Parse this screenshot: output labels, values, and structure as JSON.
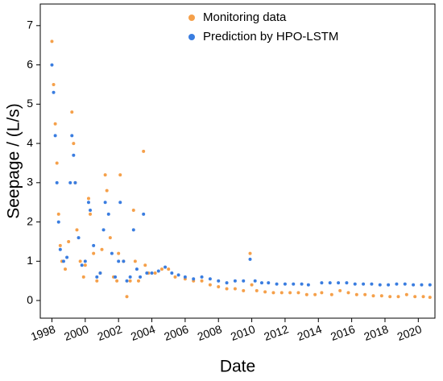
{
  "chart_data": {
    "type": "scatter",
    "xlabel": "Date",
    "ylabel": "Seepage / (L/s)",
    "xlim": [
      1997.3,
      2021.0
    ],
    "xticks": [
      1998,
      2000,
      2002,
      2004,
      2006,
      2008,
      2010,
      2012,
      2014,
      2016,
      2018,
      2020
    ],
    "ylim": [
      -0.45,
      7.55
    ],
    "yticks": [
      0,
      1,
      2,
      3,
      4,
      5,
      6,
      7
    ],
    "legend": "upper center",
    "series": [
      {
        "name": "Monitoring data",
        "color": "#f5a04a",
        "x": [
          1998.0,
          1998.1,
          1998.2,
          1998.3,
          1998.4,
          1998.5,
          1998.6,
          1998.8,
          1999.0,
          1999.2,
          1999.3,
          1999.4,
          1999.5,
          1999.7,
          1999.9,
          2000.0,
          2000.2,
          2000.3,
          2000.5,
          2000.7,
          2000.9,
          2001.0,
          2001.2,
          2001.3,
          2001.5,
          2001.7,
          2001.9,
          2002.0,
          2002.1,
          2002.3,
          2002.5,
          2002.7,
          2002.9,
          2003.0,
          2003.2,
          2003.5,
          2003.6,
          2003.8,
          2004.2,
          2004.6,
          2005.0,
          2005.4,
          2006.0,
          2006.5,
          2007.0,
          2007.5,
          2008.0,
          2008.5,
          2009.0,
          2009.5,
          2009.9,
          2010.0,
          2010.3,
          2010.8,
          2011.3,
          2011.8,
          2012.3,
          2012.8,
          2013.3,
          2013.8,
          2014.2,
          2014.8,
          2015.3,
          2015.8,
          2016.3,
          2016.8,
          2017.3,
          2017.8,
          2018.3,
          2018.8,
          2019.3,
          2019.8,
          2020.3,
          2020.7
        ],
        "values": [
          6.6,
          5.5,
          4.5,
          3.5,
          2.2,
          1.4,
          1.0,
          0.8,
          1.5,
          4.8,
          4.0,
          3.0,
          1.8,
          1.0,
          0.6,
          0.9,
          2.6,
          2.2,
          1.2,
          0.5,
          0.7,
          1.3,
          3.2,
          2.8,
          1.6,
          0.6,
          0.5,
          1.2,
          3.2,
          1.0,
          0.1,
          0.5,
          2.3,
          1.0,
          0.5,
          3.8,
          0.9,
          0.7,
          0.7,
          0.8,
          0.8,
          0.6,
          0.55,
          0.5,
          0.5,
          0.4,
          0.35,
          0.3,
          0.3,
          0.25,
          1.2,
          0.4,
          0.25,
          0.22,
          0.2,
          0.2,
          0.2,
          0.2,
          0.15,
          0.15,
          0.2,
          0.15,
          0.25,
          0.2,
          0.15,
          0.15,
          0.12,
          0.12,
          0.1,
          0.1,
          0.15,
          0.1,
          0.1,
          0.08
        ]
      },
      {
        "name": "Prediction by HPO-LSTM",
        "color": "#3a7de0",
        "x": [
          1998.0,
          1998.1,
          1998.2,
          1998.3,
          1998.4,
          1998.5,
          1998.7,
          1998.9,
          1999.1,
          1999.2,
          1999.3,
          1999.4,
          1999.6,
          1999.8,
          2000.0,
          2000.2,
          2000.3,
          2000.5,
          2000.7,
          2000.9,
          2001.1,
          2001.2,
          2001.4,
          2001.6,
          2001.8,
          2002.0,
          2002.1,
          2002.3,
          2002.5,
          2002.7,
          2002.9,
          2003.1,
          2003.3,
          2003.5,
          2003.7,
          2004.0,
          2004.4,
          2004.8,
          2005.2,
          2005.6,
          2006.0,
          2006.5,
          2007.0,
          2007.5,
          2008.0,
          2008.5,
          2009.0,
          2009.5,
          2009.9,
          2010.2,
          2010.6,
          2011.0,
          2011.5,
          2012.0,
          2012.5,
          2013.0,
          2013.4,
          2014.2,
          2014.7,
          2015.2,
          2015.7,
          2016.2,
          2016.7,
          2017.2,
          2017.7,
          2018.2,
          2018.7,
          2019.2,
          2019.7,
          2020.2,
          2020.7
        ],
        "values": [
          6.0,
          5.3,
          4.2,
          3.0,
          2.0,
          1.3,
          1.0,
          1.1,
          3.0,
          4.2,
          3.7,
          3.0,
          1.6,
          0.9,
          1.0,
          2.5,
          2.3,
          1.4,
          0.6,
          0.7,
          1.8,
          2.5,
          2.2,
          1.2,
          0.6,
          1.0,
          2.5,
          1.0,
          0.5,
          0.6,
          1.8,
          0.8,
          0.6,
          2.2,
          0.7,
          0.7,
          0.75,
          0.85,
          0.7,
          0.65,
          0.6,
          0.55,
          0.6,
          0.55,
          0.5,
          0.45,
          0.5,
          0.5,
          1.05,
          0.5,
          0.45,
          0.45,
          0.42,
          0.42,
          0.42,
          0.42,
          0.4,
          0.45,
          0.45,
          0.45,
          0.45,
          0.42,
          0.42,
          0.42,
          0.4,
          0.4,
          0.42,
          0.42,
          0.4,
          0.4,
          0.4
        ]
      }
    ]
  }
}
